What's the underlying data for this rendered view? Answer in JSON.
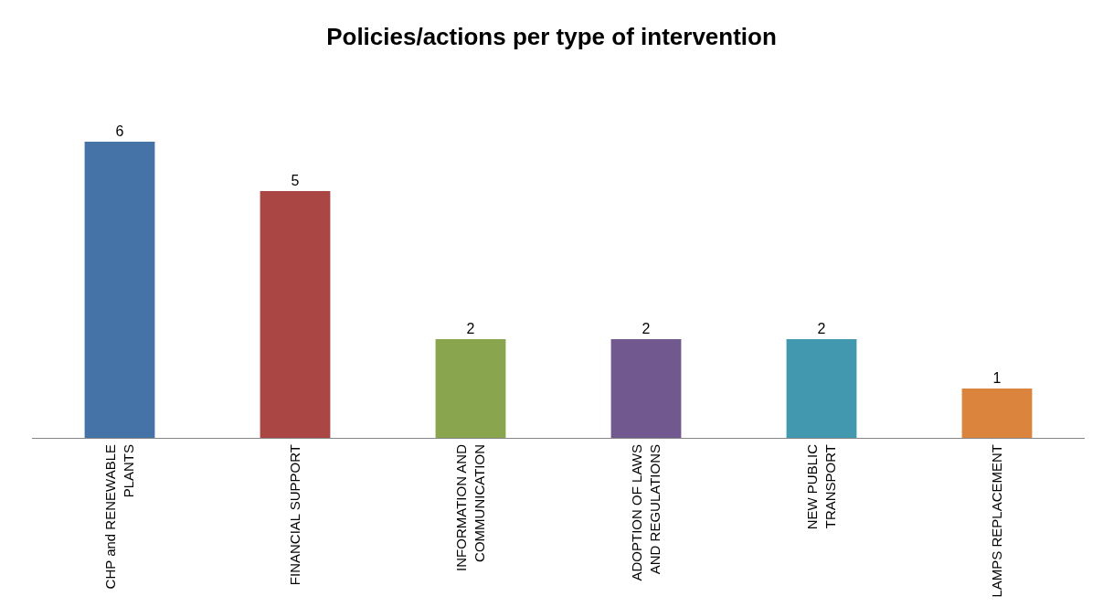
{
  "chart_data": {
    "type": "bar",
    "title": "Policies/actions per type of intervention",
    "categories": [
      "CHP and RENEWABLE PLANTS",
      "FINANCIAL SUPPORT",
      "INFORMATION AND COMMUNICATION",
      "ADOPTION OF LAWS AND REGULATIONS",
      "NEW PUBLIC TRANSPORT",
      "LAMPS REPLACEMENT"
    ],
    "values": [
      6,
      5,
      2,
      2,
      2,
      1
    ],
    "colors": [
      "#4572a7",
      "#aa4643",
      "#89a54e",
      "#71588f",
      "#4198af",
      "#db843d"
    ],
    "data_labels": true
  }
}
